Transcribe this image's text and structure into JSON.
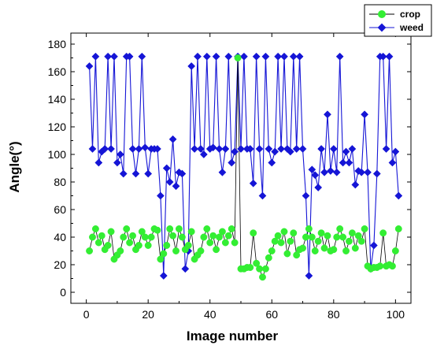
{
  "chart_data": {
    "type": "line",
    "title": "",
    "xlabel": "Image number",
    "ylabel": "Angle(°)",
    "xlim": [
      -5,
      105
    ],
    "ylim": [
      -8,
      188
    ],
    "xticks": [
      0,
      20,
      40,
      60,
      80,
      100
    ],
    "yticks": [
      0,
      20,
      40,
      60,
      80,
      100,
      120,
      140,
      160,
      180
    ],
    "grid": false,
    "legend_position": "top-right",
    "series": [
      {
        "name": "crop",
        "color": "#33ee33",
        "line_color": "#000000",
        "marker": "circle",
        "x": [
          1,
          2,
          3,
          4,
          5,
          6,
          7,
          8,
          9,
          10,
          11,
          12,
          13,
          14,
          15,
          16,
          17,
          18,
          19,
          20,
          21,
          22,
          23,
          24,
          25,
          26,
          27,
          28,
          29,
          30,
          31,
          32,
          33,
          34,
          35,
          36,
          37,
          38,
          39,
          40,
          41,
          42,
          43,
          44,
          45,
          46,
          47,
          48,
          49,
          50,
          51,
          52,
          53,
          54,
          55,
          56,
          57,
          58,
          59,
          60,
          61,
          62,
          63,
          64,
          65,
          66,
          67,
          68,
          69,
          70,
          71,
          72,
          73,
          74,
          75,
          76,
          77,
          78,
          79,
          80,
          81,
          82,
          83,
          84,
          85,
          86,
          87,
          88,
          89,
          90,
          91,
          92,
          93,
          94,
          95,
          96,
          97,
          98,
          99,
          100,
          101
        ],
        "values": [
          30,
          40,
          46,
          36,
          41,
          31,
          34,
          44,
          24,
          27,
          30,
          40,
          46,
          36,
          41,
          31,
          34,
          44,
          40,
          34,
          40,
          46,
          45,
          24,
          28,
          34,
          46,
          41,
          30,
          46,
          40,
          31,
          34,
          44,
          24,
          27,
          30,
          40,
          46,
          36,
          41,
          31,
          40,
          44,
          36,
          41,
          46,
          36,
          170,
          17,
          17,
          18,
          18,
          43,
          21,
          17,
          11,
          17,
          25,
          30,
          37,
          41,
          36,
          44,
          28,
          37,
          43,
          27,
          31,
          32,
          40,
          46,
          40,
          30,
          37,
          43,
          32,
          41,
          30,
          31,
          40,
          46,
          40,
          30,
          37,
          43,
          32,
          41,
          37,
          46,
          19,
          17,
          18,
          18,
          19,
          43,
          19,
          20,
          19,
          30,
          46
        ]
      },
      {
        "name": "weed",
        "color": "#1515d6",
        "line_color": "#1515d6",
        "marker": "diamond",
        "x": [
          1,
          2,
          3,
          4,
          5,
          6,
          7,
          8,
          9,
          10,
          11,
          12,
          13,
          14,
          15,
          16,
          17,
          18,
          19,
          20,
          21,
          22,
          23,
          24,
          25,
          26,
          27,
          28,
          29,
          30,
          31,
          32,
          33,
          34,
          35,
          36,
          37,
          38,
          39,
          40,
          41,
          42,
          43,
          44,
          45,
          46,
          47,
          48,
          49,
          50,
          51,
          52,
          53,
          54,
          55,
          56,
          57,
          58,
          59,
          60,
          61,
          62,
          63,
          64,
          65,
          66,
          67,
          68,
          69,
          70,
          71,
          72,
          73,
          74,
          75,
          76,
          77,
          78,
          79,
          80,
          81,
          82,
          83,
          84,
          85,
          86,
          87,
          88,
          89,
          90,
          91,
          92,
          93,
          94,
          95,
          96,
          97,
          98,
          99,
          100,
          101
        ],
        "values": [
          164,
          104,
          171,
          94,
          102,
          104,
          171,
          104,
          171,
          94,
          100,
          86,
          171,
          171,
          104,
          86,
          104,
          171,
          105,
          86,
          104,
          104,
          104,
          70,
          12,
          90,
          80,
          111,
          77,
          87,
          86,
          17,
          30,
          164,
          104,
          171,
          104,
          100,
          171,
          104,
          105,
          171,
          104,
          87,
          104,
          171,
          94,
          102,
          171,
          104,
          171,
          104,
          104,
          79,
          171,
          104,
          70,
          171,
          104,
          94,
          102,
          171,
          104,
          171,
          104,
          102,
          171,
          104,
          171,
          104,
          70,
          12,
          89,
          85,
          76,
          104,
          87,
          129,
          88,
          104,
          87,
          171,
          94,
          102,
          94,
          104,
          78,
          88,
          87,
          129,
          87,
          17,
          34,
          86,
          171,
          171,
          104,
          171,
          94,
          102,
          70
        ]
      }
    ]
  }
}
